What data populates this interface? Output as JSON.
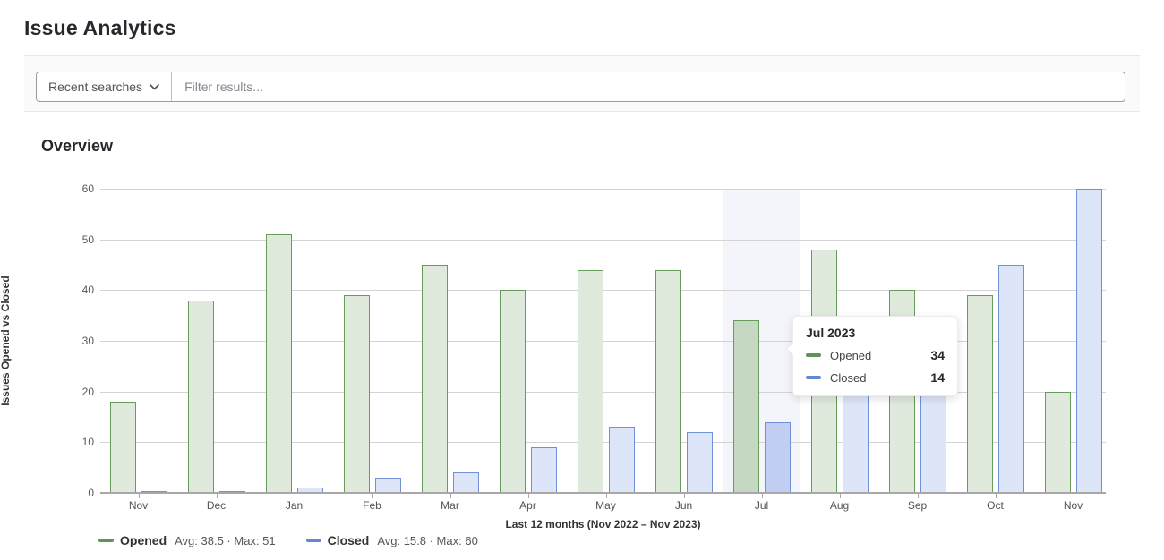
{
  "page": {
    "title": "Issue Analytics"
  },
  "filter_bar": {
    "recent_searches_label": "Recent searches",
    "placeholder": "Filter results..."
  },
  "overview": {
    "heading": "Overview"
  },
  "chart_data": {
    "type": "bar",
    "title": "Overview",
    "categories": [
      "Nov",
      "Dec",
      "Jan",
      "Feb",
      "Mar",
      "Apr",
      "May",
      "Jun",
      "Jul",
      "Aug",
      "Sep",
      "Oct",
      "Nov"
    ],
    "series": [
      {
        "name": "Opened",
        "values": [
          18,
          38,
          51,
          39,
          45,
          40,
          44,
          44,
          34,
          48,
          40,
          39,
          20
        ]
      },
      {
        "name": "Closed",
        "values": [
          0,
          0,
          1,
          3,
          4,
          9,
          13,
          12,
          14,
          22,
          22,
          45,
          60
        ]
      }
    ],
    "ylabel": "Issues Opened vs Closed",
    "xlabel": "Last 12 months (Nov 2022 – Nov 2023)",
    "ylim": [
      0,
      60
    ],
    "yticks": [
      0,
      10,
      20,
      30,
      40,
      50,
      60
    ],
    "grid": true,
    "legend_position": "bottom",
    "hover_index": 8
  },
  "tooltip": {
    "title": "Jul 2023",
    "rows": [
      {
        "label": "Opened",
        "value": "34"
      },
      {
        "label": "Closed",
        "value": "14"
      }
    ]
  },
  "legend": {
    "items": [
      {
        "label": "Opened",
        "stats": "Avg: 38.5 · Max: 51",
        "series": "opened"
      },
      {
        "label": "Closed",
        "stats": "Avg: 15.8 · Max: 60",
        "series": "closed"
      }
    ]
  },
  "colors": {
    "opened_fill": "#dfeadd",
    "opened_border": "#679c5b",
    "opened_hover_fill": "#c5d8c2",
    "closed_fill": "#dde5f8",
    "closed_border": "#7290d6",
    "closed_hover_fill": "#c2cef1",
    "hover_band": "#f3f5fa",
    "gridline": "#d4d4d4"
  }
}
